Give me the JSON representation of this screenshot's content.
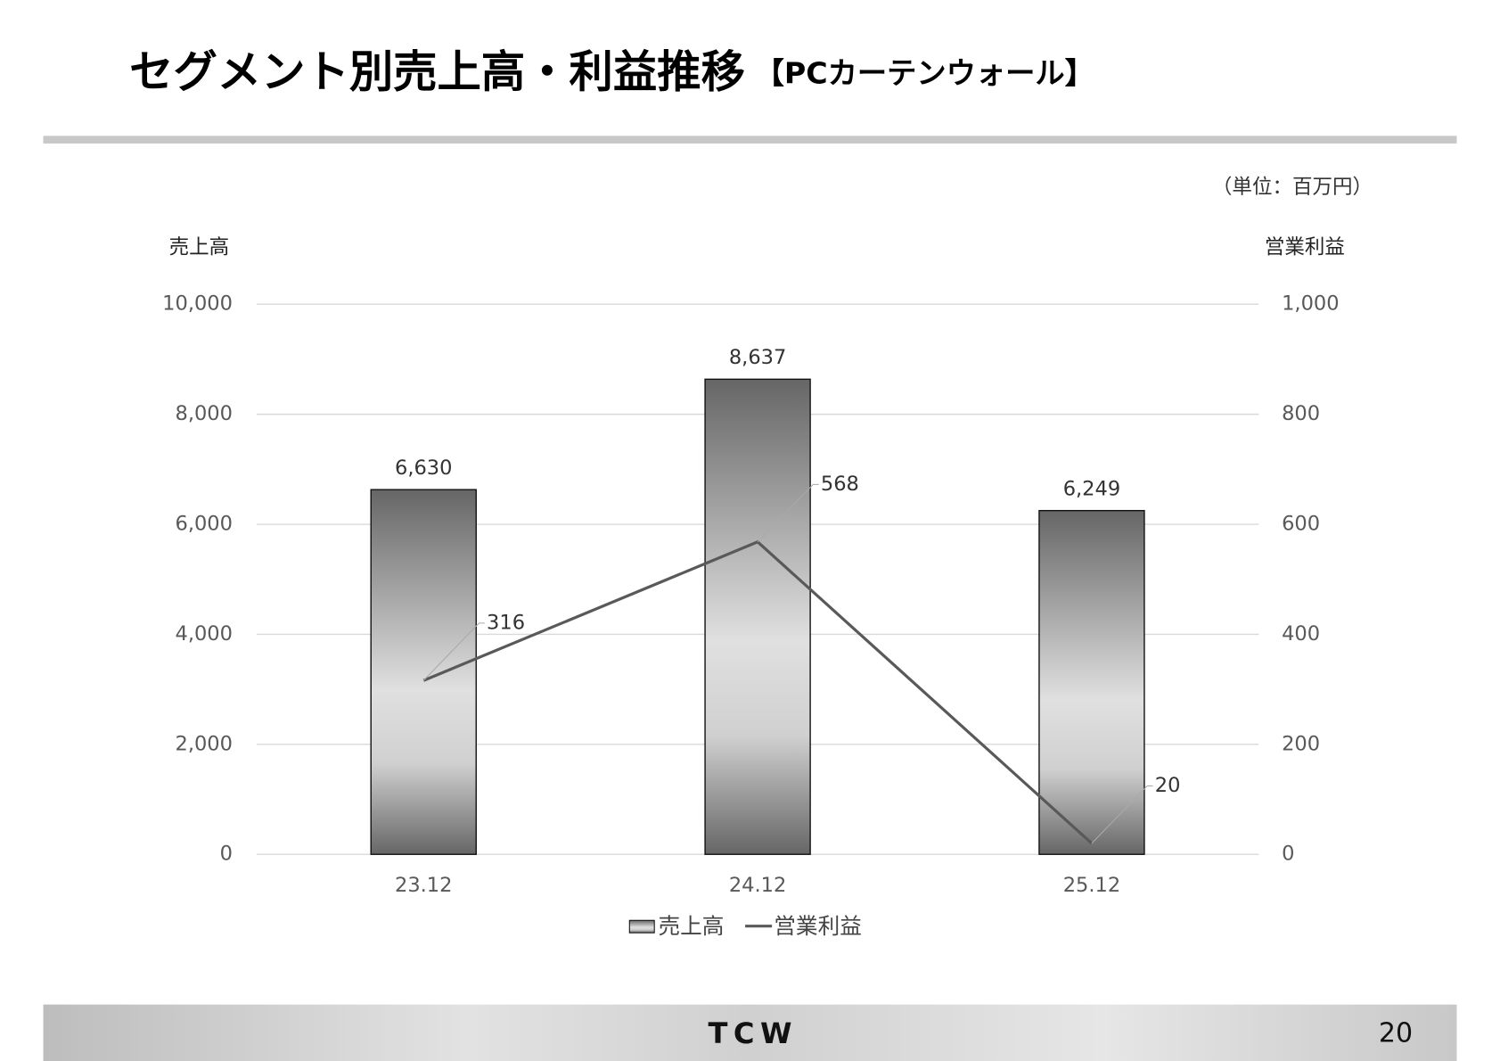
{
  "header": {
    "title": "セグメント別売上高・利益推移",
    "subtitle": "【PCカーテンウォール】"
  },
  "chart_data": {
    "type": "bar",
    "unit_note": "（単位：百万円）",
    "y_label": "売上高",
    "y2_label": "営業利益",
    "categories": [
      "23.12",
      "24.12",
      "25.12"
    ],
    "series": [
      {
        "name": "売上高",
        "type": "bar",
        "color": "#6b6b6b",
        "values": [
          6630,
          8637,
          6249
        ],
        "value_labels": [
          "6,630",
          "8,637",
          "6,249"
        ]
      },
      {
        "name": "営業利益",
        "type": "line",
        "axis": "y2",
        "color": "#595959",
        "values": [
          316,
          568,
          20
        ]
      }
    ],
    "ylim": [
      0,
      10000
    ],
    "yticks": [
      0,
      {
        "value": 2000,
        "label": "2,000"
      },
      {
        "value": 4000,
        "label": "4,000"
      },
      {
        "value": 6000,
        "label": "6,000"
      },
      {
        "value": 8000,
        "label": "8,000"
      },
      {
        "value": 10000,
        "label": "10,000"
      }
    ],
    "y2lim": [
      0,
      1000
    ],
    "y2ticks": [
      0,
      200,
      400,
      600,
      800,
      {
        "value": 1000,
        "label": "1,000"
      }
    ],
    "grid": true,
    "legend": "bottom"
  },
  "footer": {
    "logo": "TCW",
    "page_number": "20"
  }
}
